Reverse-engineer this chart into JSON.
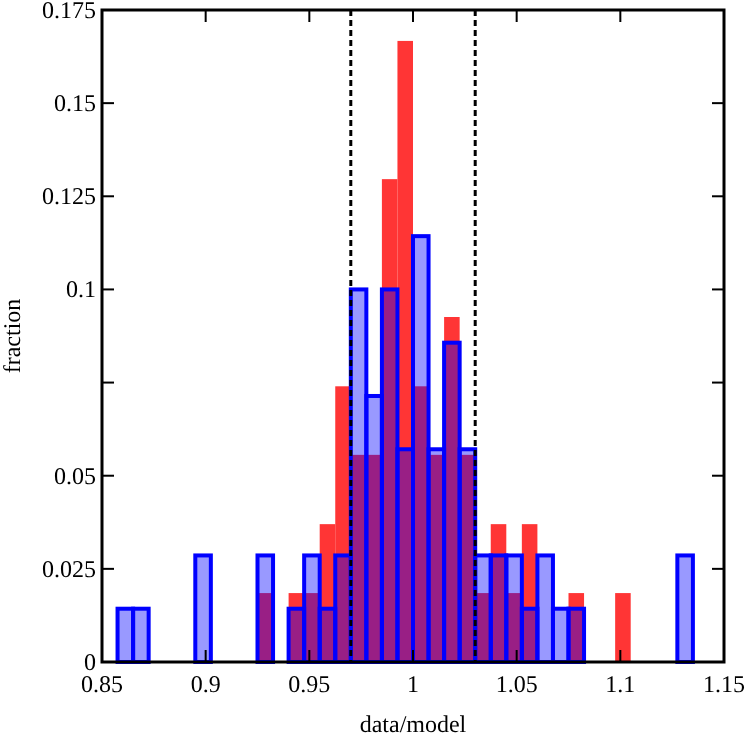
{
  "chart_data": {
    "type": "histogram",
    "xlabel": "data/model",
    "ylabel": "fraction",
    "bins": [
      0.85,
      0.8575,
      0.865,
      0.8725,
      0.88,
      0.8875,
      0.895,
      0.9025,
      0.91,
      0.9175,
      0.925,
      0.9325,
      0.94,
      0.9475,
      0.955,
      0.9625,
      0.97,
      0.9775,
      0.985,
      0.9925,
      1,
      1.0075,
      1.015,
      1.0225,
      1.03,
      1.0375,
      1.045,
      1.0525,
      1.06,
      1.0675,
      1.075,
      1.0825,
      1.09,
      1.0975,
      1.105,
      1.1125,
      1.12,
      1.1275,
      1.135,
      1.1425,
      1.15
    ],
    "series": [
      {
        "color": "#ff2a2a",
        "values": [
          0,
          0,
          0,
          0,
          0,
          0,
          0,
          0,
          0,
          0,
          0.0185,
          0,
          0.0185,
          0.0185,
          0.037,
          0.074,
          0.0556,
          0.0556,
          0.1296,
          0.1667,
          0.074,
          0.0556,
          0.0926,
          0.0556,
          0.0185,
          0.037,
          0.0185,
          0.037,
          0,
          0,
          0.0185,
          0,
          0,
          0.0185,
          0,
          0,
          0,
          0,
          0,
          0
        ]
      },
      {
        "color": "#0000ff",
        "values": [
          0,
          0.0143,
          0.0143,
          0,
          0,
          0,
          0.0286,
          0,
          0,
          0,
          0.0286,
          0,
          0.0143,
          0.0286,
          0.0143,
          0.0286,
          0.1,
          0.0714,
          0.1,
          0.0571,
          0.1143,
          0.0571,
          0.0857,
          0.0571,
          0.0286,
          0.0286,
          0.0286,
          0.0143,
          0.0286,
          0.0143,
          0.0143,
          0,
          0,
          0,
          0,
          0,
          0,
          0.0286,
          0,
          0
        ]
      }
    ],
    "xlim": [
      0.85,
      1.15
    ],
    "xticks": [
      0.85,
      0.9,
      0.95,
      1,
      1.05,
      1.1,
      1.15
    ],
    "ylim": [
      0,
      0.175
    ],
    "yticks": [
      0,
      0.025,
      0.05,
      {
        "value": 0.075,
        "label": null
      },
      0.1,
      0.125,
      0.15,
      0.175
    ],
    "ref_lines": [
      {
        "axis": "x",
        "value": 0.97,
        "color": "#000000",
        "line_style": "dashed"
      },
      {
        "axis": "x",
        "value": 1.03,
        "color": "#000000",
        "line_style": "dashed"
      }
    ],
    "grid": false
  }
}
